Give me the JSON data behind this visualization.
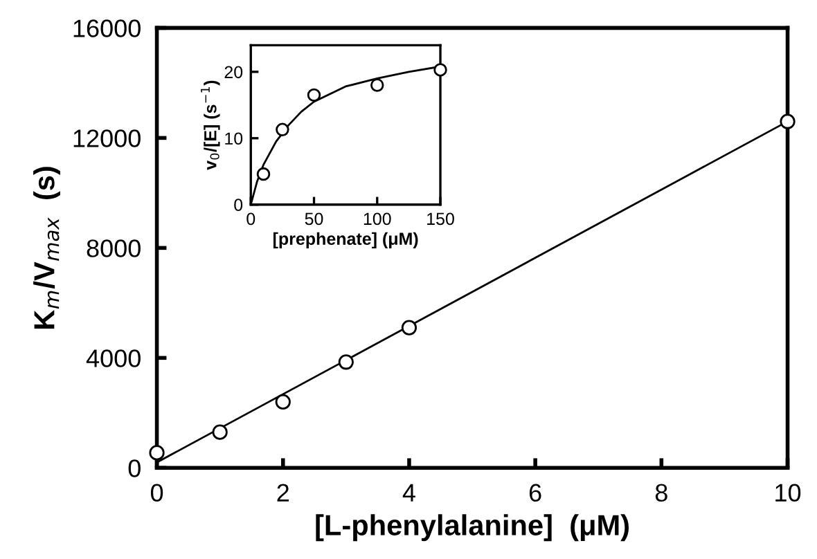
{
  "chart_data": [
    {
      "type": "scatter",
      "xlabel": "[L-phenylalanine]  (μM)",
      "ylabel": "K$_{m}$/V$_{max}$  (s)",
      "xlim": [
        0,
        10
      ],
      "ylim": [
        0,
        16000
      ],
      "xticks": [
        0,
        2,
        4,
        6,
        8,
        10
      ],
      "yticks": [
        0,
        4000,
        8000,
        12000,
        16000
      ],
      "grid": false,
      "legend": false,
      "series": [
        {
          "color": "#000000",
          "marker": "circle",
          "x": [
            0,
            1,
            2,
            3,
            4,
            10
          ],
          "values": [
            550,
            1300,
            2400,
            3850,
            5100,
            12600
          ]
        },
        {
          "type": "line",
          "color": "#000000",
          "marker": "none",
          "line_style": "solid",
          "x": [
            0,
            10
          ],
          "values": [
            200,
            12600
          ]
        }
      ]
    },
    {
      "type": "scatter",
      "xlabel": "[prephenate] (μM)",
      "ylabel": "v$_{0}$/[E] (s$^{−1}$)",
      "xlim": [
        0,
        150
      ],
      "ylim": [
        0,
        24
      ],
      "xticks": [
        0,
        50,
        100,
        150
      ],
      "yticks": [
        0,
        10,
        20
      ],
      "grid": false,
      "legend": false,
      "series": [
        {
          "color": "#000000",
          "marker": "circle",
          "x": [
            10,
            25,
            50,
            100,
            150
          ],
          "values": [
            4.6,
            11.3,
            16.5,
            18,
            20.3
          ]
        },
        {
          "type": "line",
          "color": "#000000",
          "marker": "none",
          "line_style": "solid",
          "x": [
            0,
            5,
            10,
            20,
            30,
            40,
            50,
            75,
            100,
            125,
            150
          ],
          "values": [
            0,
            3.5,
            6,
            9.5,
            12,
            14,
            15.5,
            17.8,
            19,
            20,
            20.8
          ]
        }
      ]
    }
  ]
}
